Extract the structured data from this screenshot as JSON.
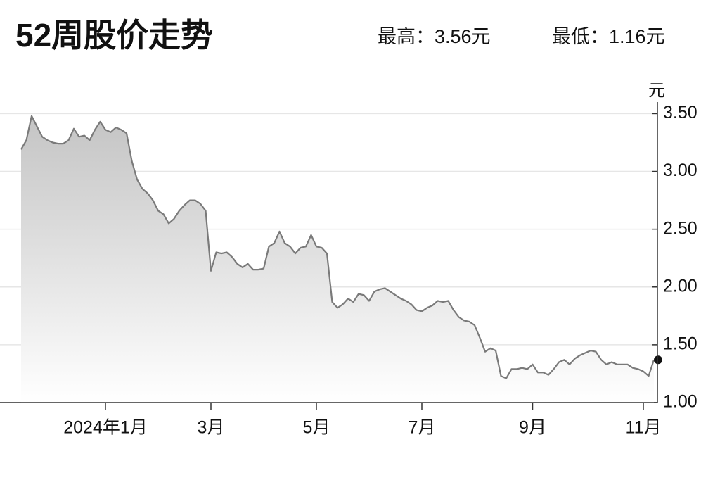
{
  "chart_data": {
    "type": "area-line",
    "title": "52周股价走势",
    "high_label": "最高：3.56元",
    "low_label": "最低：1.16元",
    "y_unit": "元",
    "categories": [
      null,
      null,
      null,
      null,
      null,
      null,
      null,
      null,
      null,
      null,
      null,
      null,
      null,
      null,
      null,
      null,
      "2024年1月",
      null,
      null,
      null,
      null,
      null,
      null,
      null,
      null,
      null,
      null,
      null,
      null,
      null,
      null,
      null,
      null,
      null,
      null,
      null,
      "3月",
      null,
      null,
      null,
      null,
      null,
      null,
      null,
      null,
      null,
      null,
      null,
      null,
      null,
      null,
      null,
      null,
      null,
      null,
      null,
      "5月",
      null,
      null,
      null,
      null,
      null,
      null,
      null,
      null,
      null,
      null,
      null,
      null,
      null,
      null,
      null,
      null,
      null,
      null,
      null,
      "7月",
      null,
      null,
      null,
      null,
      null,
      null,
      null,
      null,
      null,
      null,
      null,
      null,
      null,
      null,
      null,
      null,
      null,
      null,
      null,
      null,
      "9月",
      null,
      null,
      null,
      null,
      null,
      null,
      null,
      null,
      null,
      null,
      null,
      null,
      null,
      null,
      null,
      null,
      null,
      null,
      null,
      null,
      "11月",
      null,
      null
    ],
    "values": [
      3.19,
      3.27,
      3.48,
      3.39,
      3.3,
      3.27,
      3.25,
      3.24,
      3.24,
      3.27,
      3.37,
      3.3,
      3.31,
      3.27,
      3.36,
      3.43,
      3.36,
      3.34,
      3.38,
      3.36,
      3.33,
      3.09,
      2.93,
      2.85,
      2.81,
      2.75,
      2.66,
      2.63,
      2.55,
      2.59,
      2.66,
      2.71,
      2.75,
      2.75,
      2.72,
      2.66,
      2.14,
      2.3,
      2.29,
      2.3,
      2.26,
      2.2,
      2.17,
      2.2,
      2.15,
      2.15,
      2.16,
      2.35,
      2.38,
      2.48,
      2.38,
      2.35,
      2.29,
      2.34,
      2.35,
      2.45,
      2.35,
      2.34,
      2.29,
      1.87,
      1.82,
      1.85,
      1.9,
      1.87,
      1.94,
      1.93,
      1.88,
      1.96,
      1.98,
      1.99,
      1.96,
      1.93,
      1.9,
      1.88,
      1.85,
      1.8,
      1.79,
      1.82,
      1.84,
      1.88,
      1.87,
      1.88,
      1.8,
      1.74,
      1.71,
      1.7,
      1.67,
      1.56,
      1.44,
      1.47,
      1.45,
      1.23,
      1.21,
      1.29,
      1.29,
      1.3,
      1.29,
      1.33,
      1.26,
      1.26,
      1.24,
      1.29,
      1.35,
      1.37,
      1.33,
      1.38,
      1.41,
      1.43,
      1.45,
      1.44,
      1.37,
      1.33,
      1.35,
      1.33,
      1.33,
      1.33,
      1.3,
      1.29,
      1.27,
      1.23,
      1.37
    ],
    "color": "#7a7a7a",
    "ylim": [
      1.0,
      3.6
    ],
    "yticks": [
      {
        "value": 1.0,
        "label": "1.00"
      },
      {
        "value": 1.5,
        "label": "1.50"
      },
      {
        "value": 2.0,
        "label": "2.00"
      },
      {
        "value": 2.5,
        "label": "2.50"
      },
      {
        "value": 3.0,
        "label": "3.00"
      },
      {
        "value": 3.5,
        "label": "3.50"
      }
    ],
    "grid": true,
    "mark_last_point": true
  }
}
